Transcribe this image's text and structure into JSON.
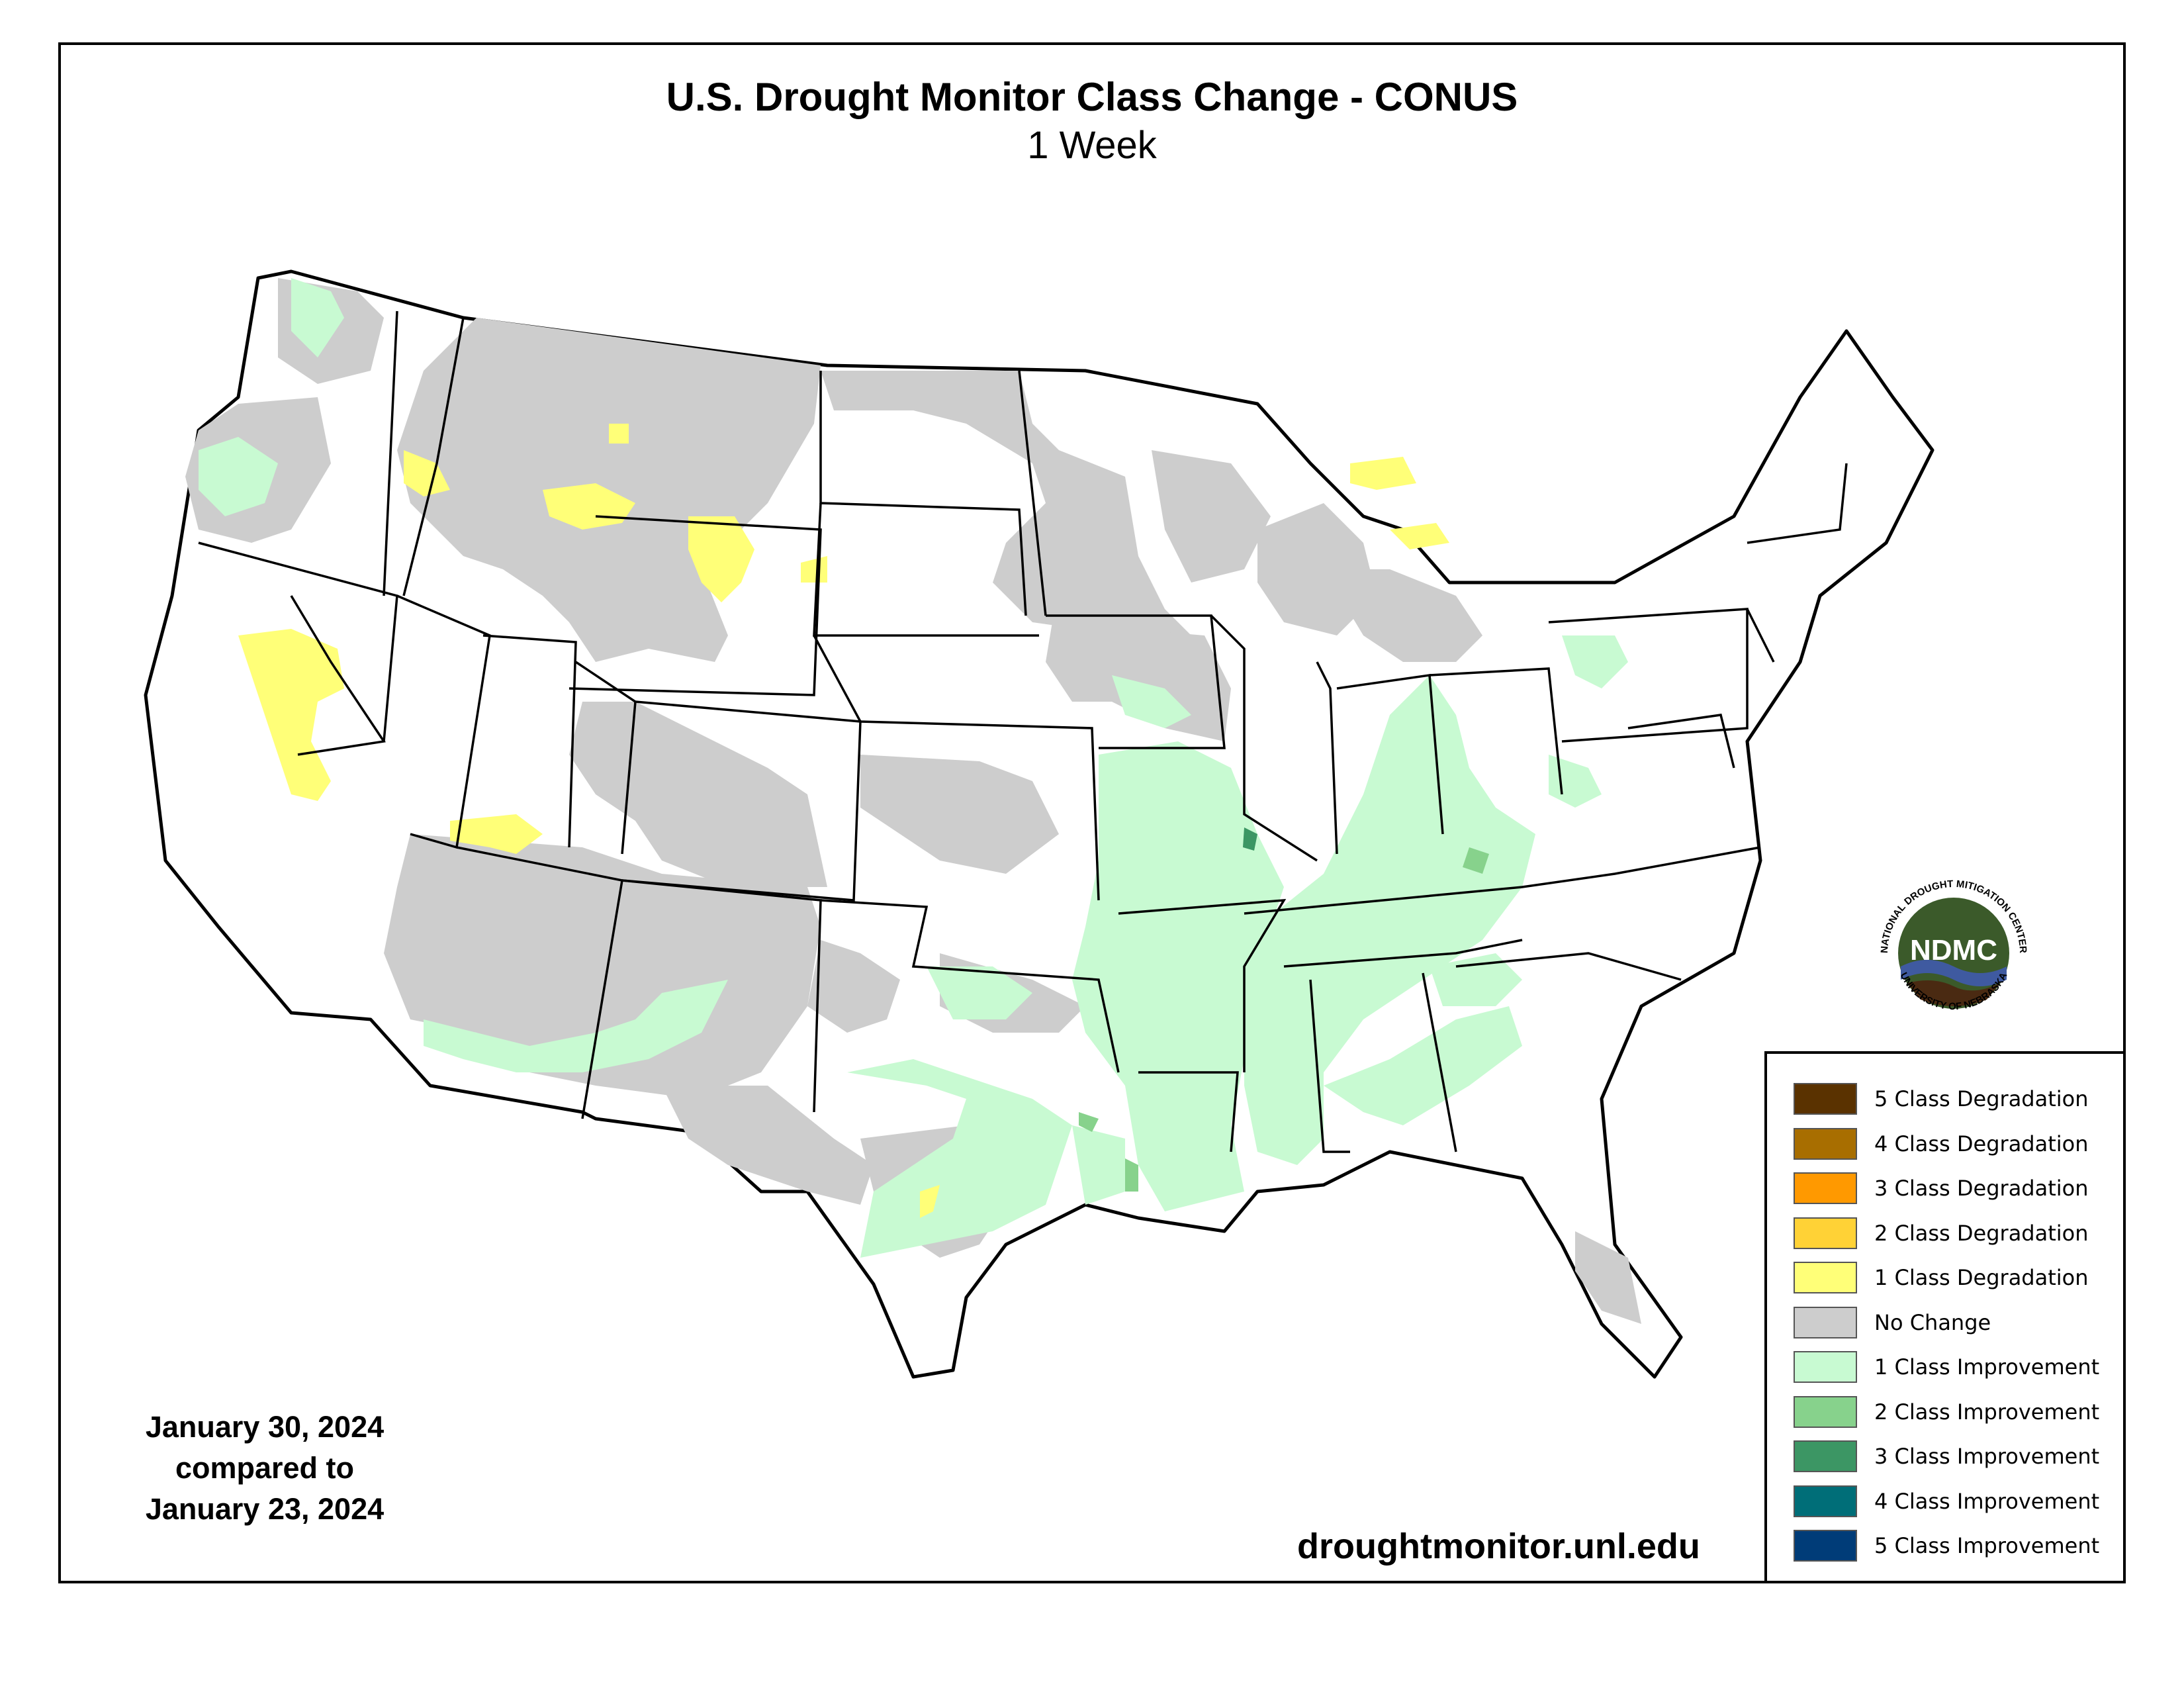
{
  "title": "U.S. Drought Monitor Class Change - CONUS",
  "subtitle": "1 Week",
  "dates": {
    "line1": "January 30, 2024",
    "line2": "compared to",
    "line3": "January 23, 2024"
  },
  "url": "droughtmonitor.unl.edu",
  "logo": {
    "abbr": "NDMC",
    "top_text": "NATIONAL DROUGHT MITIGATION CENTER",
    "bottom_text": "UNIVERSITY OF NEBRASKA"
  },
  "legend": {
    "items": [
      {
        "label": "5 Class Degradation",
        "color": "#5a3200"
      },
      {
        "label": "4 Class Degradation",
        "color": "#a86e00"
      },
      {
        "label": "3 Class Degradation",
        "color": "#ff9900"
      },
      {
        "label": "2 Class Degradation",
        "color": "#ffd236"
      },
      {
        "label": "1 Class Degradation",
        "color": "#ffff78"
      },
      {
        "label": "No Change",
        "color": "#cdcdcd"
      },
      {
        "label": "1 Class Improvement",
        "color": "#c8fad2"
      },
      {
        "label": "2 Class Improvement",
        "color": "#87d28c"
      },
      {
        "label": "3 Class Improvement",
        "color": "#3c9664"
      },
      {
        "label": "4 Class Improvement",
        "color": "#006e78"
      },
      {
        "label": "5 Class Improvement",
        "color": "#003c78"
      }
    ]
  },
  "colors": {
    "no_change": "#cdcdcd",
    "improvement_1": "#c8fad2",
    "improvement_2": "#87d28c",
    "improvement_3": "#3c9664",
    "degradation_1": "#ffff78",
    "degradation_2": "#ffd236",
    "logo_green": "#3b5a2a",
    "logo_blue": "#3f5aa0",
    "logo_brown": "#4a2a12"
  }
}
